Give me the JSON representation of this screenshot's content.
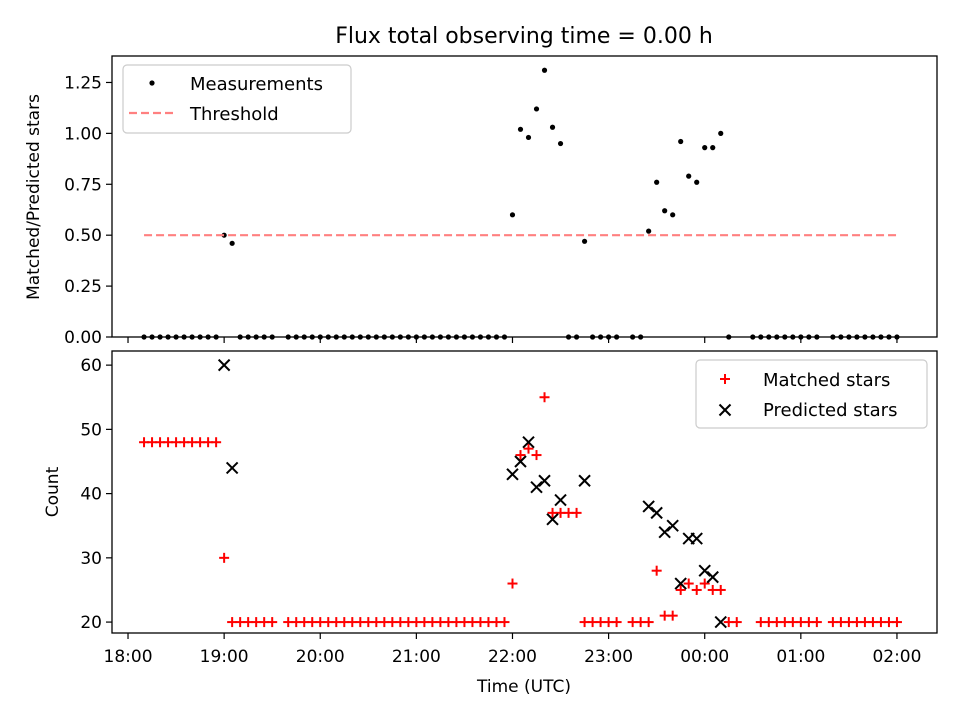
{
  "figure": {
    "title": "Flux total observing time = 0.00 h"
  },
  "chart_data": [
    {
      "type": "scatter",
      "title": "Flux total observing time = 0.00 h",
      "xlabel": "",
      "ylabel": "Matched/Predicted stars",
      "x_type": "time",
      "xlim": [
        "17:50",
        "02:25"
      ],
      "ylim": [
        0,
        1.38
      ],
      "xticks": [
        "18:00",
        "19:00",
        "20:00",
        "21:00",
        "22:00",
        "23:00",
        "00:00",
        "01:00",
        "02:00"
      ],
      "xtick_labels_shown": false,
      "yticks": [
        0.0,
        0.25,
        0.5,
        0.75,
        1.0,
        1.25
      ],
      "ytick_labels": [
        "0.00",
        "0.25",
        "0.50",
        "0.75",
        "1.00",
        "1.25"
      ],
      "grid": false,
      "legend_position": "top-left",
      "series": [
        {
          "name": "Measurements",
          "marker": "dot",
          "color": "#000000",
          "points": [
            [
              "18:10",
              0
            ],
            [
              "18:15",
              0
            ],
            [
              "18:20",
              0
            ],
            [
              "18:25",
              0
            ],
            [
              "18:30",
              0
            ],
            [
              "18:35",
              0
            ],
            [
              "18:40",
              0
            ],
            [
              "18:45",
              0
            ],
            [
              "18:50",
              0
            ],
            [
              "18:55",
              0
            ],
            [
              "19:00",
              0.5
            ],
            [
              "19:05",
              0.46
            ],
            [
              "19:10",
              0
            ],
            [
              "19:15",
              0
            ],
            [
              "19:20",
              0
            ],
            [
              "19:25",
              0
            ],
            [
              "19:30",
              0
            ],
            [
              "19:40",
              0
            ],
            [
              "19:45",
              0
            ],
            [
              "19:50",
              0
            ],
            [
              "19:55",
              0
            ],
            [
              "20:00",
              0
            ],
            [
              "20:05",
              0
            ],
            [
              "20:10",
              0
            ],
            [
              "20:15",
              0
            ],
            [
              "20:20",
              0
            ],
            [
              "20:25",
              0
            ],
            [
              "20:30",
              0
            ],
            [
              "20:35",
              0
            ],
            [
              "20:40",
              0
            ],
            [
              "20:45",
              0
            ],
            [
              "20:50",
              0
            ],
            [
              "20:55",
              0
            ],
            [
              "21:00",
              0
            ],
            [
              "21:05",
              0
            ],
            [
              "21:10",
              0
            ],
            [
              "21:15",
              0
            ],
            [
              "21:20",
              0
            ],
            [
              "21:25",
              0
            ],
            [
              "21:30",
              0
            ],
            [
              "21:35",
              0
            ],
            [
              "21:40",
              0
            ],
            [
              "21:45",
              0
            ],
            [
              "21:50",
              0
            ],
            [
              "21:55",
              0
            ],
            [
              "22:00",
              0.6
            ],
            [
              "22:05",
              1.02
            ],
            [
              "22:10",
              0.98
            ],
            [
              "22:15",
              1.12
            ],
            [
              "22:20",
              1.31
            ],
            [
              "22:25",
              1.03
            ],
            [
              "22:30",
              0.95
            ],
            [
              "22:35",
              0
            ],
            [
              "22:40",
              0
            ],
            [
              "22:45",
              0.47
            ],
            [
              "22:50",
              0
            ],
            [
              "22:55",
              0
            ],
            [
              "23:00",
              0
            ],
            [
              "23:05",
              0
            ],
            [
              "23:15",
              0
            ],
            [
              "23:20",
              0
            ],
            [
              "23:25",
              0.52
            ],
            [
              "23:30",
              0.76
            ],
            [
              "23:35",
              0.62
            ],
            [
              "23:40",
              0.6
            ],
            [
              "23:45",
              0.96
            ],
            [
              "23:50",
              0.79
            ],
            [
              "23:55",
              0.76
            ],
            [
              "00:00",
              0.93
            ],
            [
              "00:05",
              0.93
            ],
            [
              "00:10",
              1.0
            ],
            [
              "00:15",
              0
            ],
            [
              "00:30",
              0
            ],
            [
              "00:35",
              0
            ],
            [
              "00:40",
              0
            ],
            [
              "00:45",
              0
            ],
            [
              "00:50",
              0
            ],
            [
              "00:55",
              0
            ],
            [
              "01:00",
              0
            ],
            [
              "01:05",
              0
            ],
            [
              "01:10",
              0
            ],
            [
              "01:20",
              0
            ],
            [
              "01:25",
              0
            ],
            [
              "01:30",
              0
            ],
            [
              "01:35",
              0
            ],
            [
              "01:40",
              0
            ],
            [
              "01:45",
              0
            ],
            [
              "01:50",
              0
            ],
            [
              "01:55",
              0
            ],
            [
              "02:00",
              0
            ]
          ]
        },
        {
          "name": "Threshold",
          "marker": "dashed-line",
          "color": "#ff8080",
          "points": [
            [
              "18:10",
              0.5
            ],
            [
              "02:00",
              0.5
            ]
          ]
        }
      ]
    },
    {
      "type": "scatter",
      "title": "",
      "xlabel": "Time (UTC)",
      "ylabel": "Count",
      "x_type": "time",
      "xlim": [
        "17:50",
        "02:25"
      ],
      "ylim": [
        18.3,
        62.2
      ],
      "xticks": [
        "18:00",
        "19:00",
        "20:00",
        "21:00",
        "22:00",
        "23:00",
        "00:00",
        "01:00",
        "02:00"
      ],
      "xtick_labels": [
        "18:00",
        "19:00",
        "20:00",
        "21:00",
        "22:00",
        "23:00",
        "00:00",
        "01:00",
        "02:00"
      ],
      "yticks": [
        20,
        30,
        40,
        50,
        60
      ],
      "ytick_labels": [
        "20",
        "30",
        "40",
        "50",
        "60"
      ],
      "grid": false,
      "legend_position": "top-right",
      "series": [
        {
          "name": "Matched stars",
          "marker": "plus",
          "color": "#ff0000",
          "points": [
            [
              "18:10",
              48
            ],
            [
              "18:15",
              48
            ],
            [
              "18:20",
              48
            ],
            [
              "18:25",
              48
            ],
            [
              "18:30",
              48
            ],
            [
              "18:35",
              48
            ],
            [
              "18:40",
              48
            ],
            [
              "18:45",
              48
            ],
            [
              "18:50",
              48
            ],
            [
              "18:55",
              48
            ],
            [
              "19:00",
              30
            ],
            [
              "19:05",
              20
            ],
            [
              "19:10",
              20
            ],
            [
              "19:15",
              20
            ],
            [
              "19:20",
              20
            ],
            [
              "19:25",
              20
            ],
            [
              "19:30",
              20
            ],
            [
              "19:40",
              20
            ],
            [
              "19:45",
              20
            ],
            [
              "19:50",
              20
            ],
            [
              "19:55",
              20
            ],
            [
              "20:00",
              20
            ],
            [
              "20:05",
              20
            ],
            [
              "20:10",
              20
            ],
            [
              "20:15",
              20
            ],
            [
              "20:20",
              20
            ],
            [
              "20:25",
              20
            ],
            [
              "20:30",
              20
            ],
            [
              "20:35",
              20
            ],
            [
              "20:40",
              20
            ],
            [
              "20:45",
              20
            ],
            [
              "20:50",
              20
            ],
            [
              "20:55",
              20
            ],
            [
              "21:00",
              20
            ],
            [
              "21:05",
              20
            ],
            [
              "21:10",
              20
            ],
            [
              "21:15",
              20
            ],
            [
              "21:20",
              20
            ],
            [
              "21:25",
              20
            ],
            [
              "21:30",
              20
            ],
            [
              "21:35",
              20
            ],
            [
              "21:40",
              20
            ],
            [
              "21:45",
              20
            ],
            [
              "21:50",
              20
            ],
            [
              "21:55",
              20
            ],
            [
              "22:00",
              26
            ],
            [
              "22:05",
              46
            ],
            [
              "22:10",
              47
            ],
            [
              "22:15",
              46
            ],
            [
              "22:20",
              55
            ],
            [
              "22:25",
              37
            ],
            [
              "22:30",
              37
            ],
            [
              "22:35",
              37
            ],
            [
              "22:40",
              37
            ],
            [
              "22:45",
              20
            ],
            [
              "22:50",
              20
            ],
            [
              "22:55",
              20
            ],
            [
              "23:00",
              20
            ],
            [
              "23:05",
              20
            ],
            [
              "23:15",
              20
            ],
            [
              "23:20",
              20
            ],
            [
              "23:25",
              20
            ],
            [
              "23:30",
              28
            ],
            [
              "23:35",
              21
            ],
            [
              "23:40",
              21
            ],
            [
              "23:45",
              25
            ],
            [
              "23:50",
              26
            ],
            [
              "23:55",
              25
            ],
            [
              "00:00",
              26
            ],
            [
              "00:05",
              25
            ],
            [
              "00:10",
              25
            ],
            [
              "00:15",
              20
            ],
            [
              "00:20",
              20
            ],
            [
              "00:35",
              20
            ],
            [
              "00:40",
              20
            ],
            [
              "00:45",
              20
            ],
            [
              "00:50",
              20
            ],
            [
              "00:55",
              20
            ],
            [
              "01:00",
              20
            ],
            [
              "01:05",
              20
            ],
            [
              "01:10",
              20
            ],
            [
              "01:20",
              20
            ],
            [
              "01:25",
              20
            ],
            [
              "01:30",
              20
            ],
            [
              "01:35",
              20
            ],
            [
              "01:40",
              20
            ],
            [
              "01:45",
              20
            ],
            [
              "01:50",
              20
            ],
            [
              "01:55",
              20
            ],
            [
              "02:00",
              20
            ]
          ]
        },
        {
          "name": "Predicted stars",
          "marker": "x",
          "color": "#000000",
          "points": [
            [
              "19:00",
              60
            ],
            [
              "19:05",
              44
            ],
            [
              "22:00",
              43
            ],
            [
              "22:05",
              45
            ],
            [
              "22:10",
              48
            ],
            [
              "22:15",
              41
            ],
            [
              "22:20",
              42
            ],
            [
              "22:25",
              36
            ],
            [
              "22:30",
              39
            ],
            [
              "22:45",
              42
            ],
            [
              "23:25",
              38
            ],
            [
              "23:30",
              37
            ],
            [
              "23:35",
              34
            ],
            [
              "23:40",
              35
            ],
            [
              "23:45",
              26
            ],
            [
              "23:50",
              33
            ],
            [
              "23:55",
              33
            ],
            [
              "00:00",
              28
            ],
            [
              "00:05",
              27
            ],
            [
              "00:10",
              20
            ]
          ]
        }
      ]
    }
  ]
}
